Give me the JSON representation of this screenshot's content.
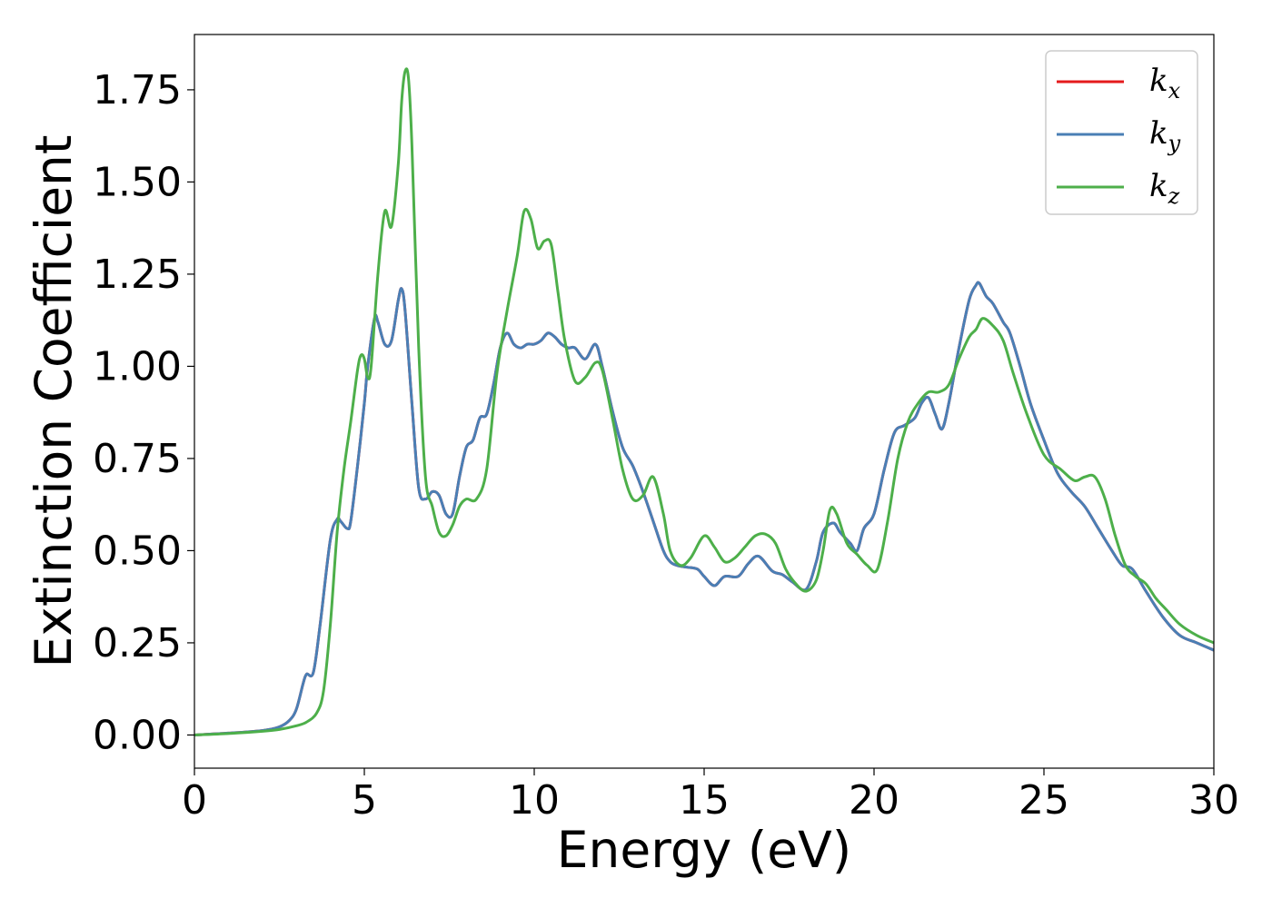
{
  "chart_data": {
    "type": "line",
    "xlabel": "Energy (eV)",
    "ylabel": "Extinction Coefficient",
    "xlim": [
      0,
      30
    ],
    "ylim": [
      -0.09,
      1.9
    ],
    "xticks": [
      0,
      5,
      10,
      15,
      20,
      25,
      30
    ],
    "xtick_labels": [
      "0",
      "5",
      "10",
      "15",
      "20",
      "25",
      "30"
    ],
    "yticks": [
      0.0,
      0.25,
      0.5,
      0.75,
      1.0,
      1.25,
      1.5,
      1.75
    ],
    "ytick_labels": [
      "0.00",
      "0.25",
      "0.50",
      "0.75",
      "1.00",
      "1.25",
      "1.50",
      "1.75"
    ],
    "grid": false,
    "legend": "top-right",
    "series": [
      {
        "name": "k",
        "sub": "x",
        "color": "#e41a1c",
        "x": [
          0,
          1,
          2,
          2.5,
          2.8,
          3.0,
          3.2,
          3.3,
          3.5,
          3.7,
          4.0,
          4.2,
          4.3,
          4.5,
          4.6,
          4.8,
          5.0,
          5.1,
          5.3,
          5.4,
          5.6,
          5.8,
          6.0,
          6.1,
          6.2,
          6.4,
          6.6,
          6.8,
          7.0,
          7.2,
          7.4,
          7.6,
          7.8,
          8.0,
          8.2,
          8.4,
          8.6,
          8.8,
          9.0,
          9.2,
          9.4,
          9.6,
          9.8,
          10.0,
          10.2,
          10.4,
          10.6,
          10.8,
          11.0,
          11.2,
          11.5,
          11.8,
          12.0,
          12.3,
          12.6,
          12.9,
          13.2,
          13.5,
          13.8,
          14.0,
          14.2,
          14.5,
          14.8,
          15.0,
          15.3,
          15.6,
          16.0,
          16.3,
          16.6,
          17.0,
          17.3,
          17.6,
          18.0,
          18.3,
          18.5,
          18.8,
          19.0,
          19.3,
          19.5,
          19.7,
          20.0,
          20.3,
          20.6,
          20.9,
          21.2,
          21.4,
          21.6,
          21.8,
          22.0,
          22.2,
          22.5,
          22.8,
          23.0,
          23.1,
          23.3,
          23.5,
          23.8,
          24.0,
          24.3,
          24.6,
          25.0,
          25.4,
          25.8,
          26.2,
          26.6,
          27.0,
          27.3,
          27.6,
          28.0,
          28.5,
          29.0,
          29.5,
          30.0
        ],
        "y": [
          0.0,
          0.005,
          0.012,
          0.022,
          0.04,
          0.07,
          0.14,
          0.165,
          0.17,
          0.3,
          0.53,
          0.585,
          0.58,
          0.56,
          0.58,
          0.73,
          0.9,
          1.0,
          1.13,
          1.12,
          1.06,
          1.07,
          1.18,
          1.21,
          1.15,
          0.9,
          0.67,
          0.64,
          0.66,
          0.65,
          0.6,
          0.6,
          0.7,
          0.78,
          0.8,
          0.86,
          0.87,
          0.95,
          1.05,
          1.09,
          1.06,
          1.05,
          1.06,
          1.06,
          1.07,
          1.09,
          1.08,
          1.06,
          1.05,
          1.05,
          1.02,
          1.06,
          1.0,
          0.88,
          0.78,
          0.73,
          0.66,
          0.58,
          0.5,
          0.47,
          0.46,
          0.455,
          0.45,
          0.43,
          0.405,
          0.43,
          0.43,
          0.465,
          0.485,
          0.445,
          0.435,
          0.415,
          0.395,
          0.47,
          0.55,
          0.575,
          0.55,
          0.52,
          0.5,
          0.56,
          0.6,
          0.72,
          0.82,
          0.84,
          0.86,
          0.9,
          0.915,
          0.87,
          0.83,
          0.9,
          1.05,
          1.18,
          1.22,
          1.225,
          1.19,
          1.17,
          1.12,
          1.09,
          1.0,
          0.9,
          0.8,
          0.71,
          0.66,
          0.62,
          0.56,
          0.5,
          0.46,
          0.45,
          0.39,
          0.32,
          0.27,
          0.25,
          0.23
        ]
      },
      {
        "name": "k",
        "sub": "y",
        "color": "#4a7fb5",
        "x": [
          0,
          1,
          2,
          2.5,
          2.8,
          3.0,
          3.2,
          3.3,
          3.5,
          3.7,
          4.0,
          4.2,
          4.3,
          4.5,
          4.6,
          4.8,
          5.0,
          5.1,
          5.3,
          5.4,
          5.6,
          5.8,
          6.0,
          6.1,
          6.2,
          6.4,
          6.6,
          6.8,
          7.0,
          7.2,
          7.4,
          7.6,
          7.8,
          8.0,
          8.2,
          8.4,
          8.6,
          8.8,
          9.0,
          9.2,
          9.4,
          9.6,
          9.8,
          10.0,
          10.2,
          10.4,
          10.6,
          10.8,
          11.0,
          11.2,
          11.5,
          11.8,
          12.0,
          12.3,
          12.6,
          12.9,
          13.2,
          13.5,
          13.8,
          14.0,
          14.2,
          14.5,
          14.8,
          15.0,
          15.3,
          15.6,
          16.0,
          16.3,
          16.6,
          17.0,
          17.3,
          17.6,
          18.0,
          18.3,
          18.5,
          18.8,
          19.0,
          19.3,
          19.5,
          19.7,
          20.0,
          20.3,
          20.6,
          20.9,
          21.2,
          21.4,
          21.6,
          21.8,
          22.0,
          22.2,
          22.5,
          22.8,
          23.0,
          23.1,
          23.3,
          23.5,
          23.8,
          24.0,
          24.3,
          24.6,
          25.0,
          25.4,
          25.8,
          26.2,
          26.6,
          27.0,
          27.3,
          27.6,
          28.0,
          28.5,
          29.0,
          29.5,
          30.0
        ],
        "y": [
          0.0,
          0.005,
          0.012,
          0.022,
          0.04,
          0.07,
          0.14,
          0.165,
          0.17,
          0.3,
          0.53,
          0.585,
          0.58,
          0.56,
          0.58,
          0.73,
          0.9,
          1.0,
          1.13,
          1.12,
          1.06,
          1.07,
          1.18,
          1.21,
          1.15,
          0.9,
          0.67,
          0.64,
          0.66,
          0.65,
          0.6,
          0.6,
          0.7,
          0.78,
          0.8,
          0.86,
          0.87,
          0.95,
          1.05,
          1.09,
          1.06,
          1.05,
          1.06,
          1.06,
          1.07,
          1.09,
          1.08,
          1.06,
          1.05,
          1.05,
          1.02,
          1.06,
          1.0,
          0.88,
          0.78,
          0.73,
          0.66,
          0.58,
          0.5,
          0.47,
          0.46,
          0.455,
          0.45,
          0.43,
          0.405,
          0.43,
          0.43,
          0.465,
          0.485,
          0.445,
          0.435,
          0.415,
          0.395,
          0.47,
          0.55,
          0.575,
          0.55,
          0.52,
          0.5,
          0.56,
          0.6,
          0.72,
          0.82,
          0.84,
          0.86,
          0.9,
          0.915,
          0.87,
          0.83,
          0.9,
          1.05,
          1.18,
          1.22,
          1.225,
          1.19,
          1.17,
          1.12,
          1.09,
          1.0,
          0.9,
          0.8,
          0.71,
          0.66,
          0.62,
          0.56,
          0.5,
          0.46,
          0.45,
          0.39,
          0.32,
          0.27,
          0.25,
          0.23
        ]
      },
      {
        "name": "k",
        "sub": "z",
        "color": "#4daf4a",
        "x": [
          0,
          1,
          2,
          2.5,
          3.0,
          3.3,
          3.6,
          3.8,
          4.0,
          4.2,
          4.4,
          4.6,
          4.8,
          4.9,
          5.0,
          5.1,
          5.2,
          5.4,
          5.6,
          5.8,
          6.0,
          6.1,
          6.2,
          6.3,
          6.4,
          6.6,
          6.8,
          7.0,
          7.2,
          7.4,
          7.6,
          7.8,
          8.0,
          8.3,
          8.6,
          8.9,
          9.2,
          9.5,
          9.7,
          9.9,
          10.1,
          10.3,
          10.5,
          10.7,
          10.9,
          11.2,
          11.5,
          11.8,
          12.0,
          12.3,
          12.6,
          12.9,
          13.2,
          13.5,
          13.8,
          14.0,
          14.3,
          14.6,
          15.0,
          15.3,
          15.6,
          15.9,
          16.2,
          16.5,
          16.8,
          17.1,
          17.4,
          17.7,
          18.0,
          18.3,
          18.5,
          18.7,
          18.9,
          19.2,
          19.5,
          19.8,
          20.1,
          20.4,
          20.7,
          21.0,
          21.3,
          21.6,
          21.9,
          22.2,
          22.5,
          22.8,
          23.0,
          23.2,
          23.5,
          23.8,
          24.1,
          24.5,
          25.0,
          25.5,
          25.9,
          26.2,
          26.5,
          26.8,
          27.1,
          27.4,
          27.7,
          28.0,
          28.3,
          28.6,
          29.0,
          29.5,
          30.0
        ],
        "y": [
          0.0,
          0.004,
          0.01,
          0.015,
          0.025,
          0.035,
          0.06,
          0.12,
          0.3,
          0.55,
          0.72,
          0.85,
          0.99,
          1.03,
          1.02,
          0.97,
          1.0,
          1.25,
          1.42,
          1.38,
          1.55,
          1.72,
          1.8,
          1.78,
          1.6,
          1.05,
          0.7,
          0.62,
          0.55,
          0.54,
          0.57,
          0.62,
          0.64,
          0.64,
          0.72,
          0.98,
          1.15,
          1.3,
          1.42,
          1.4,
          1.32,
          1.34,
          1.33,
          1.2,
          1.07,
          0.96,
          0.97,
          1.01,
          0.99,
          0.86,
          0.72,
          0.64,
          0.65,
          0.7,
          0.6,
          0.5,
          0.46,
          0.48,
          0.54,
          0.51,
          0.47,
          0.48,
          0.51,
          0.54,
          0.545,
          0.52,
          0.45,
          0.41,
          0.39,
          0.42,
          0.5,
          0.61,
          0.6,
          0.52,
          0.49,
          0.46,
          0.45,
          0.58,
          0.75,
          0.85,
          0.9,
          0.93,
          0.93,
          0.95,
          1.02,
          1.08,
          1.1,
          1.13,
          1.11,
          1.07,
          0.98,
          0.87,
          0.76,
          0.72,
          0.69,
          0.7,
          0.7,
          0.64,
          0.54,
          0.46,
          0.43,
          0.41,
          0.37,
          0.34,
          0.3,
          0.27,
          0.25
        ]
      }
    ]
  }
}
